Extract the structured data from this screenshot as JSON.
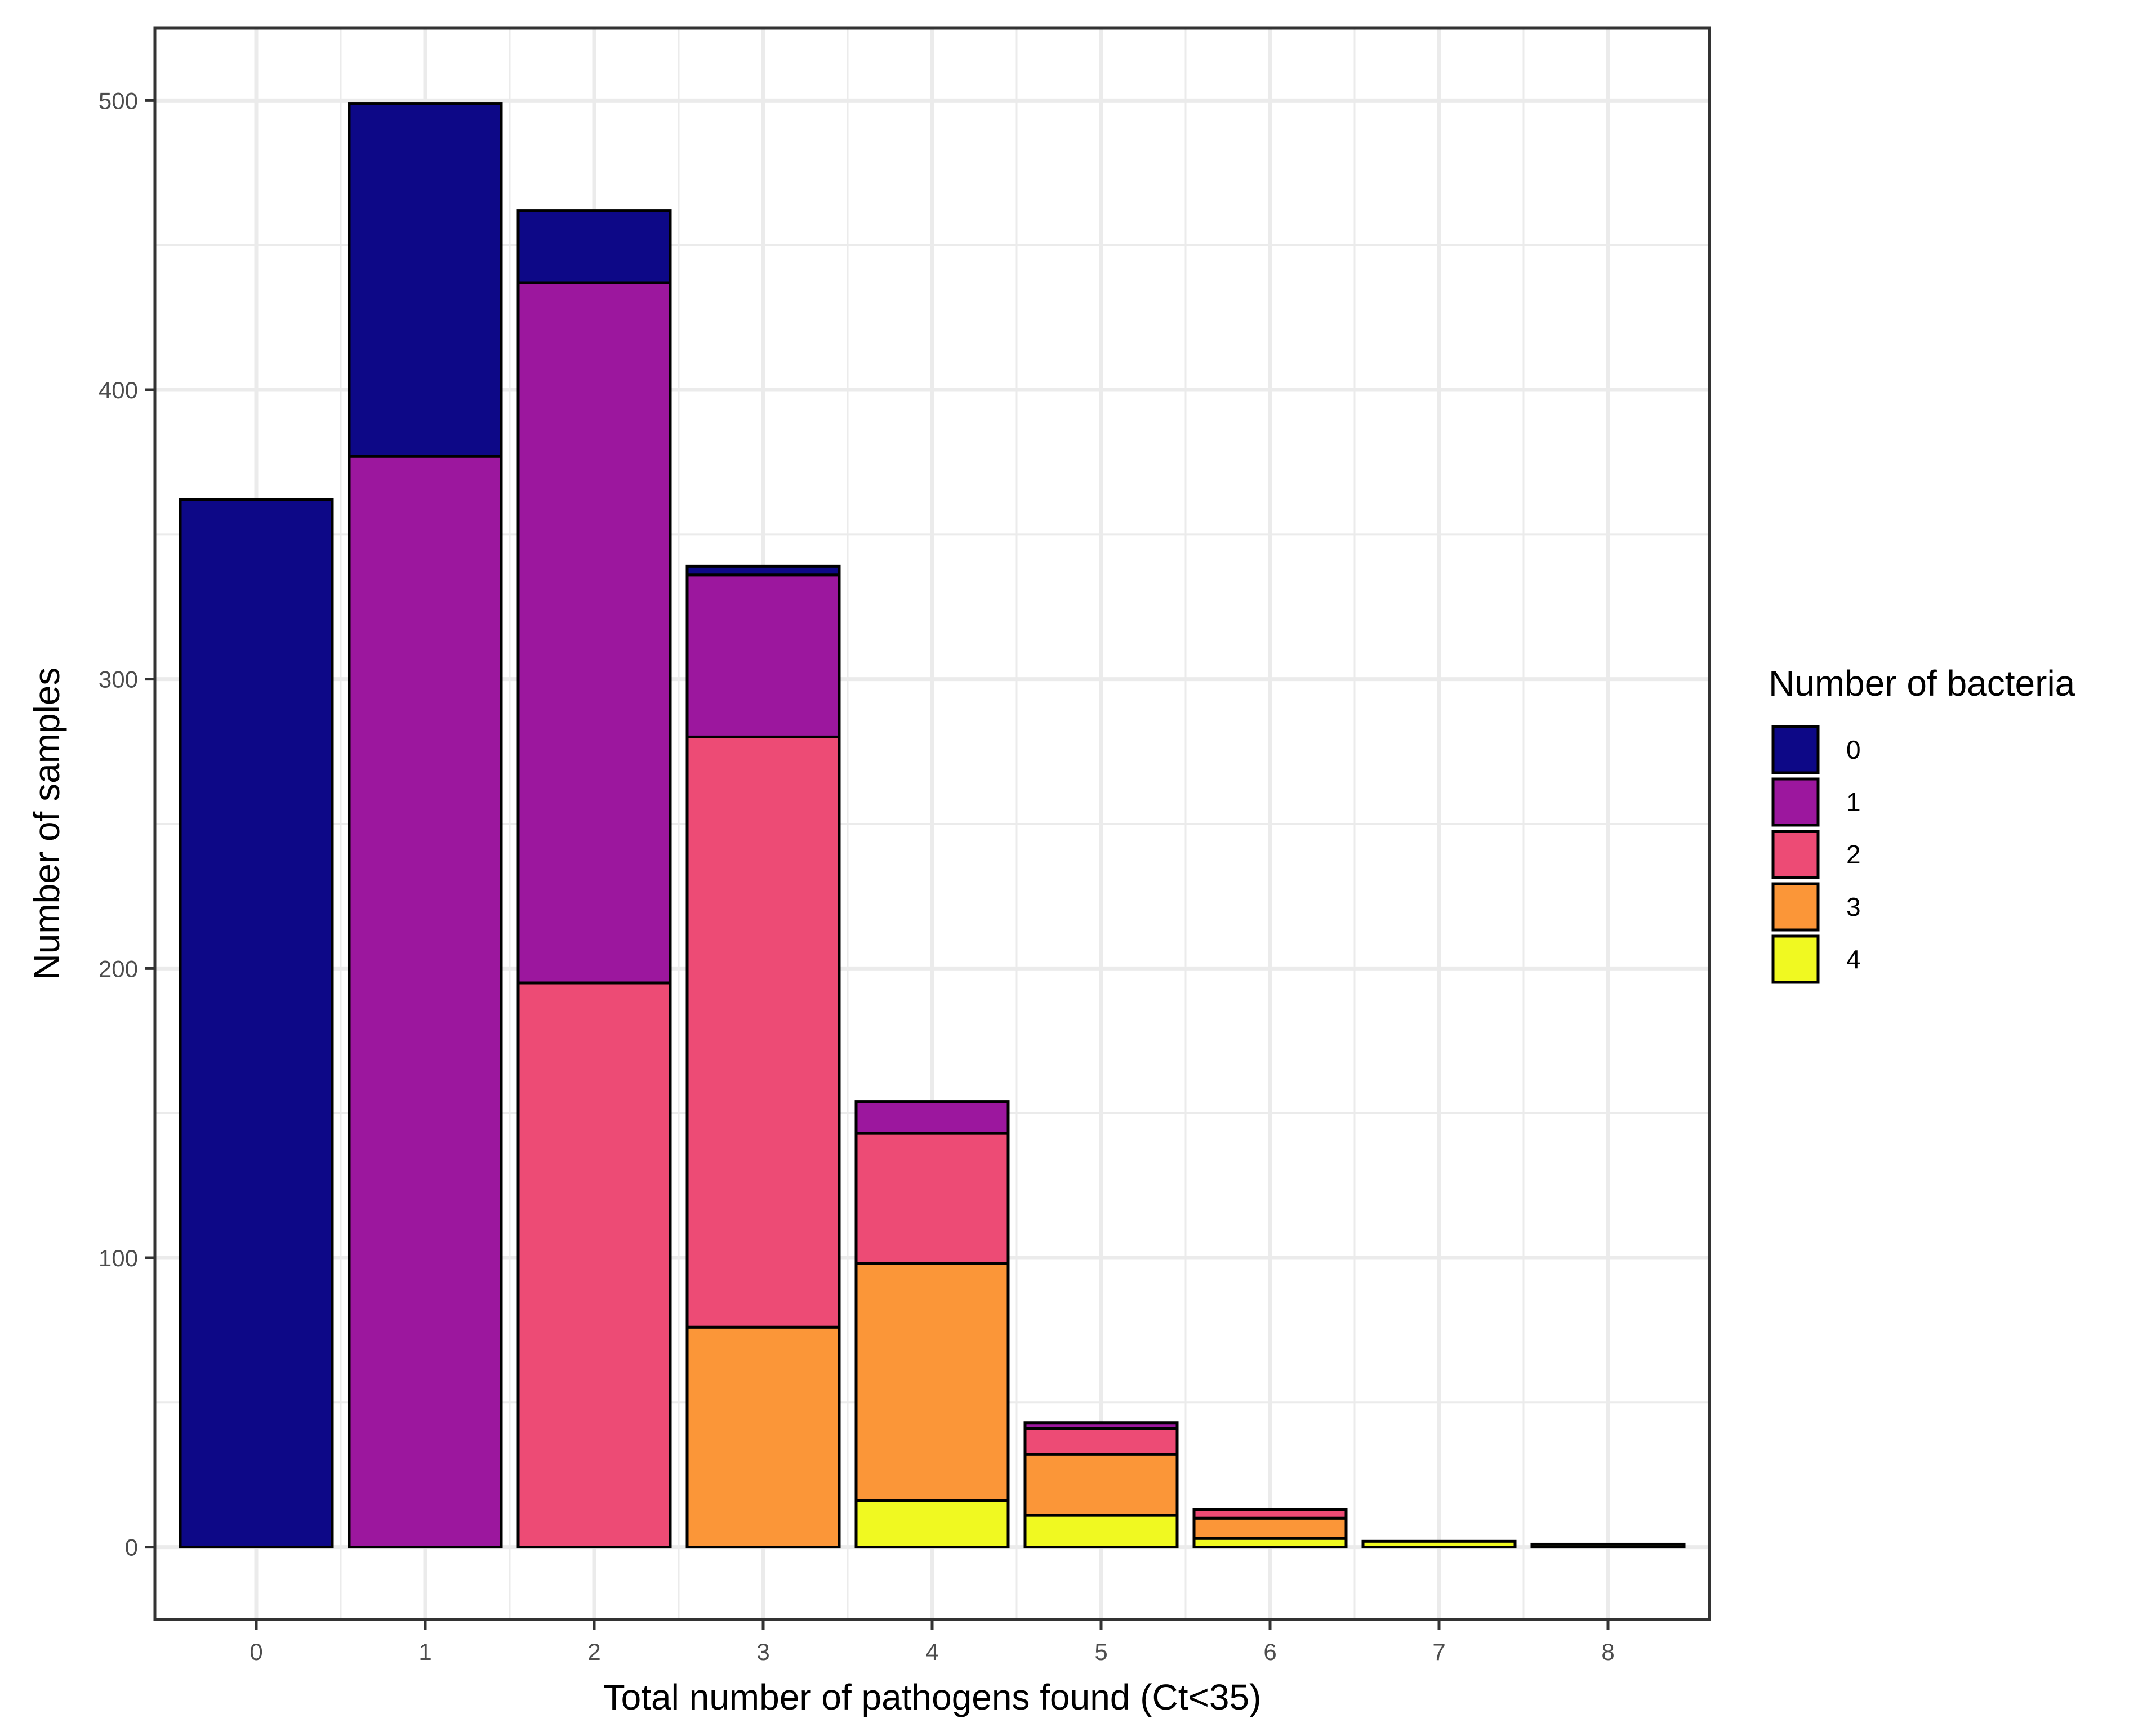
{
  "chart_data": {
    "type": "bar",
    "stacked": true,
    "title": "",
    "xlabel": "Total number of pathogens found (Ct<35)",
    "ylabel": "Number of samples",
    "categories": [
      "0",
      "1",
      "2",
      "3",
      "4",
      "5",
      "6",
      "7",
      "8"
    ],
    "ylim": [
      -25,
      525
    ],
    "yticks": [
      0,
      100,
      200,
      300,
      400,
      500
    ],
    "grid": true,
    "legend": {
      "title": "Number of bacteria",
      "position": "right"
    },
    "series": [
      {
        "name": "0",
        "color": "#0d0887",
        "values": [
          362,
          122,
          25,
          3,
          0,
          0,
          0,
          0,
          0
        ]
      },
      {
        "name": "1",
        "color": "#9c179e",
        "values": [
          0,
          377,
          242,
          56,
          11,
          2,
          0,
          0,
          0
        ]
      },
      {
        "name": "2",
        "color": "#ed4b75",
        "values": [
          0,
          0,
          195,
          204,
          45,
          9,
          3,
          0,
          0
        ]
      },
      {
        "name": "3",
        "color": "#fb9638",
        "values": [
          0,
          0,
          0,
          76,
          82,
          21,
          7,
          0,
          0
        ]
      },
      {
        "name": "4",
        "color": "#f0f921",
        "values": [
          0,
          0,
          0,
          0,
          16,
          11,
          3,
          2,
          1
        ]
      }
    ]
  }
}
